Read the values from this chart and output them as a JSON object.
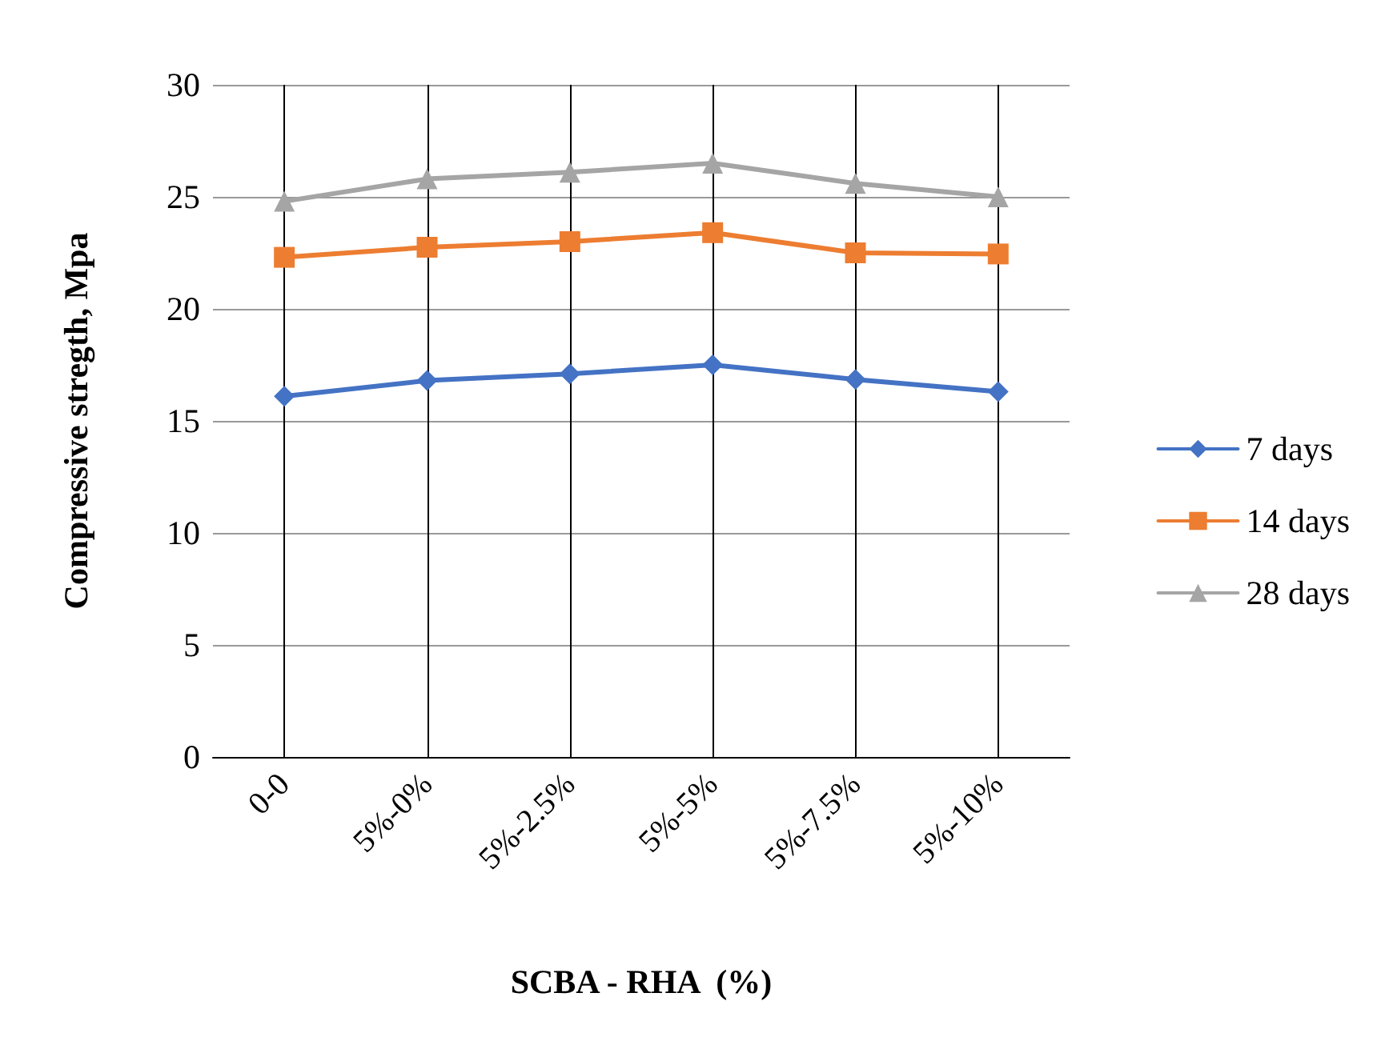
{
  "chart_data": {
    "type": "line",
    "xlabel": "SCBA - RHA  (%)",
    "ylabel": "Compressive stregth, Mpa",
    "categories": [
      "0-0",
      "5%-0%",
      "5%-2.5%",
      "5%-5%",
      "5%-7.5%",
      "5%-10%"
    ],
    "series": [
      {
        "name": "7 days",
        "color": "#4472c4",
        "marker": "diamond",
        "values": [
          16.1,
          16.8,
          17.1,
          17.5,
          16.85,
          16.3
        ]
      },
      {
        "name": "14 days",
        "color": "#ed7d31",
        "marker": "square",
        "values": [
          22.3,
          22.75,
          23.0,
          23.4,
          22.5,
          22.45
        ]
      },
      {
        "name": "28 days",
        "color": "#a5a5a5",
        "marker": "triangle",
        "values": [
          24.8,
          25.8,
          26.1,
          26.5,
          25.6,
          25.0
        ]
      }
    ],
    "ylim": [
      0,
      30
    ],
    "yticks": [
      0,
      5,
      10,
      15,
      20,
      25,
      30
    ],
    "grid": true,
    "legend": "right",
    "line_style": "solid"
  }
}
